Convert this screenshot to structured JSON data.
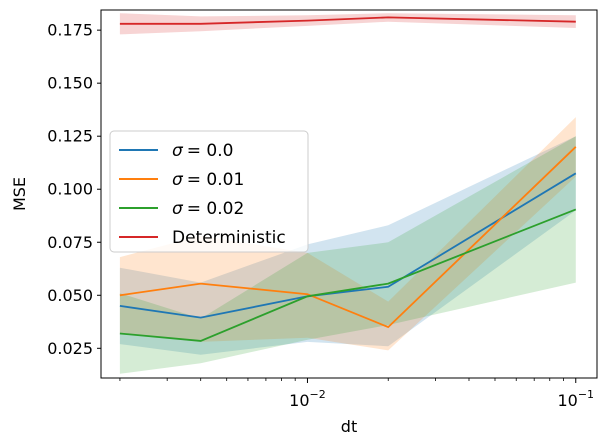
{
  "chart_data": {
    "type": "line",
    "xlabel": "dt",
    "ylabel": "MSE",
    "xscale": "log",
    "x": [
      0.002,
      0.004,
      0.01,
      0.02,
      0.1
    ],
    "xlim": [
      0.0017,
      0.12
    ],
    "ylim": [
      0.011,
      0.1845
    ],
    "x_ticks": [
      {
        "value": 0.01,
        "label": "10",
        "exp": "−2"
      },
      {
        "value": 0.1,
        "label": "10",
        "exp": "−1"
      }
    ],
    "y_ticks": [
      {
        "value": 0.025,
        "label": "0.025"
      },
      {
        "value": 0.05,
        "label": "0.050"
      },
      {
        "value": 0.075,
        "label": "0.075"
      },
      {
        "value": 0.1,
        "label": "0.100"
      },
      {
        "value": 0.125,
        "label": "0.125"
      },
      {
        "value": 0.15,
        "label": "0.150"
      },
      {
        "value": 0.175,
        "label": "0.175"
      }
    ],
    "grid": false,
    "legend_position": "center-left",
    "series": [
      {
        "name": "σ = 0.0",
        "legend_prefix": "σ",
        "legend_value": "= 0.0",
        "color": "#1f77b4",
        "values": [
          0.045,
          0.0395,
          0.0495,
          0.054,
          0.1075
        ],
        "lower": [
          0.027,
          0.022,
          0.028,
          0.026,
          0.09
        ],
        "upper": [
          0.063,
          0.056,
          0.074,
          0.083,
          0.125
        ]
      },
      {
        "name": "σ = 0.01",
        "legend_prefix": "σ",
        "legend_value": "= 0.01",
        "color": "#ff7f0e",
        "values": [
          0.05,
          0.0555,
          0.0505,
          0.035,
          0.12
        ],
        "lower": [
          0.032,
          0.028,
          0.03,
          0.024,
          0.106
        ],
        "upper": [
          0.068,
          0.078,
          0.07,
          0.047,
          0.134
        ]
      },
      {
        "name": "σ = 0.02",
        "legend_prefix": "σ",
        "legend_value": "= 0.02",
        "color": "#2ca02c",
        "values": [
          0.032,
          0.0285,
          0.0495,
          0.0555,
          0.0905
        ],
        "lower": [
          0.013,
          0.018,
          0.029,
          0.036,
          0.056
        ],
        "upper": [
          0.051,
          0.039,
          0.07,
          0.075,
          0.125
        ]
      },
      {
        "name": "Deterministic",
        "legend_prefix": "",
        "legend_value": "Deterministic",
        "color": "#d62728",
        "values": [
          0.178,
          0.178,
          0.1795,
          0.181,
          0.179
        ],
        "lower": [
          0.173,
          0.1745,
          0.177,
          0.179,
          0.176
        ],
        "upper": [
          0.183,
          0.1815,
          0.182,
          0.183,
          0.182
        ]
      }
    ]
  }
}
